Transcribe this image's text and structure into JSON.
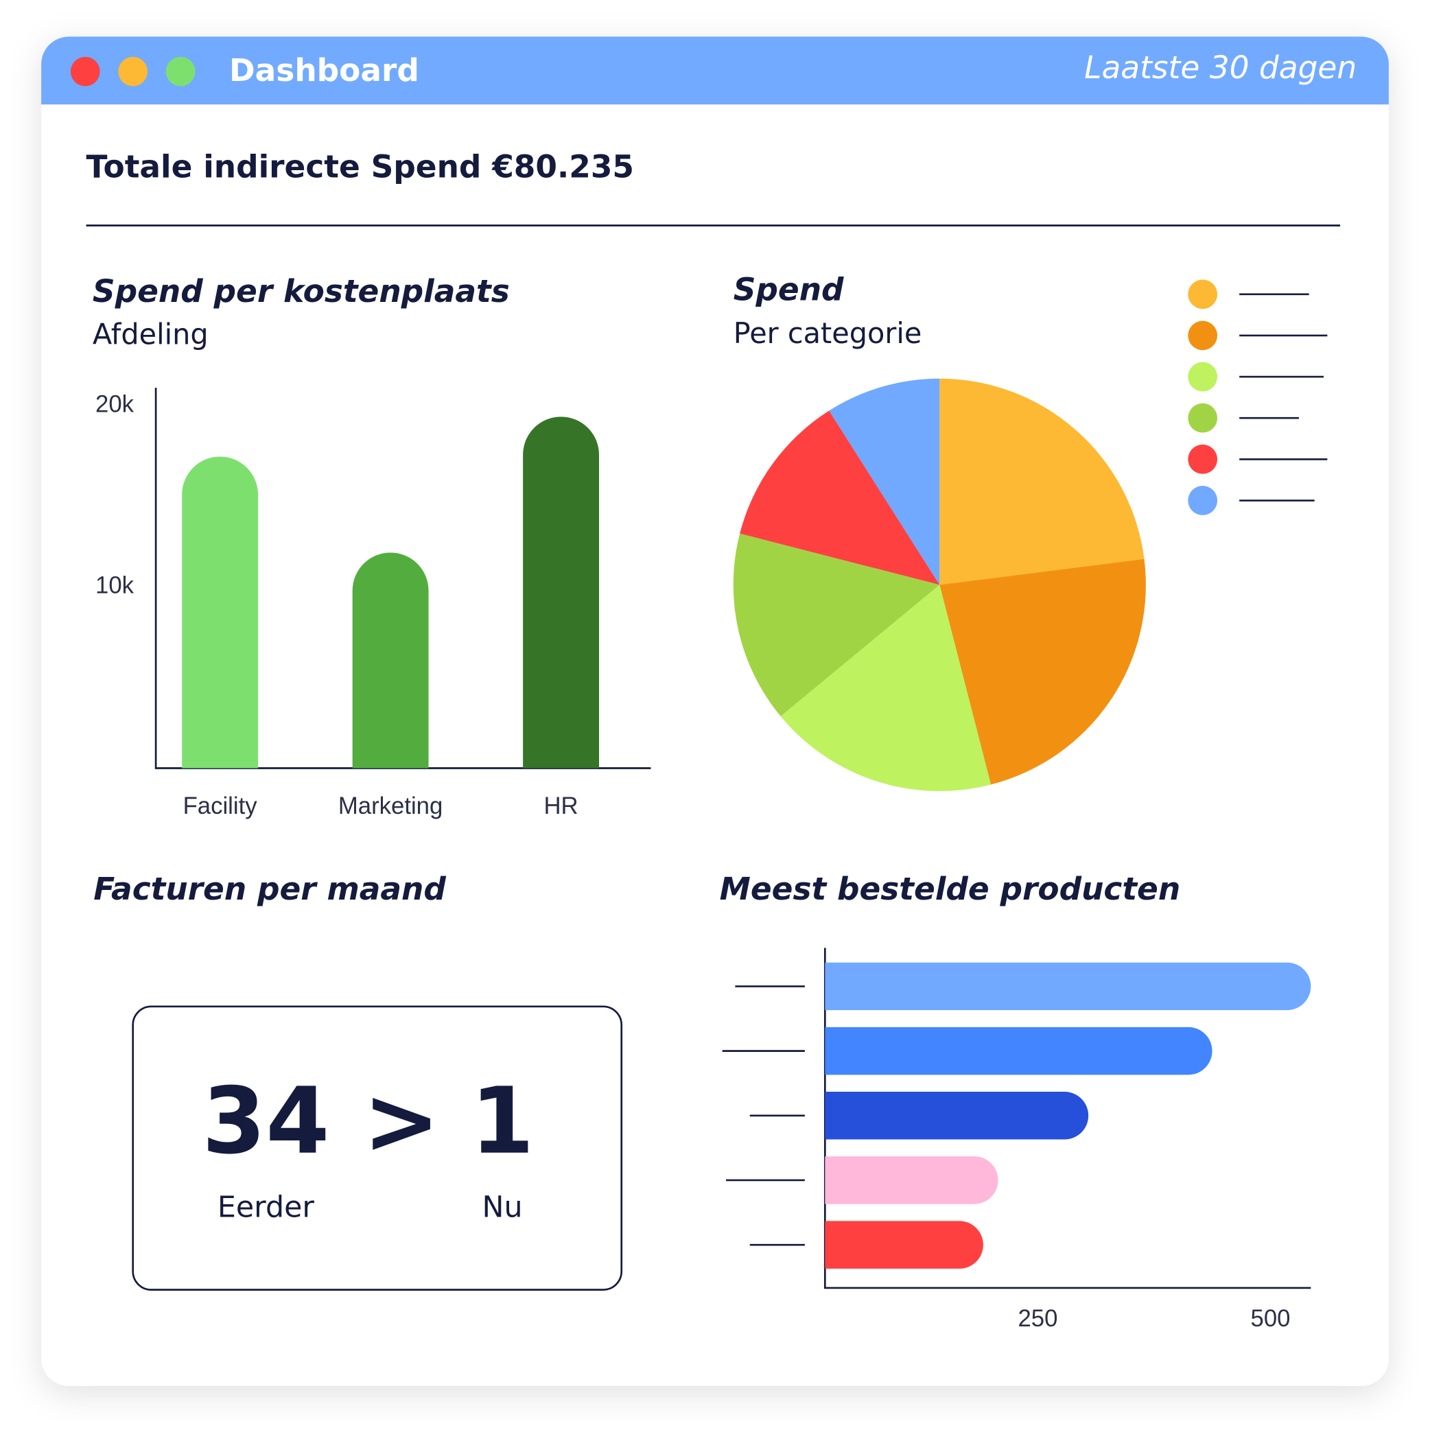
{
  "window": {
    "title": "Dashboard",
    "period": "Laatste 30 dagen"
  },
  "summary": "Totale indirecte Spend €80.235",
  "chart_data": [
    {
      "type": "bar",
      "title": "Spend per kostenplaats",
      "subtitle": "Afdeling",
      "categories": [
        "Facility",
        "Marketing",
        "HR"
      ],
      "values": [
        17200,
        11900,
        19400
      ],
      "colors": [
        "#7de06e",
        "#52ad3e",
        "#367428"
      ],
      "ylim": [
        0,
        21000
      ],
      "yticks": [
        {
          "value": 10000,
          "label": "10k"
        },
        {
          "value": 20000,
          "label": "20k"
        }
      ]
    },
    {
      "type": "pie",
      "title": "Spend",
      "subtitle": "Per categorie",
      "categories": [
        null,
        null,
        null,
        null,
        null,
        null
      ],
      "values": [
        23,
        23,
        18,
        15,
        12,
        9
      ],
      "colors": [
        "#fdb933",
        "#f29111",
        "#bef25e",
        "#a1d445",
        "#ff4040",
        "#70a9ff"
      ],
      "legend": "top-right"
    },
    {
      "type": "hbar",
      "title": "Meest bestelde producten",
      "categories": [
        null,
        null,
        null,
        null,
        null
      ],
      "values": [
        522,
        416,
        283,
        186,
        170
      ],
      "colors": [
        "#70a9ff",
        "#4285ff",
        "#2650d9",
        "#ffb8d9",
        "#ff4040"
      ],
      "xlim": [
        0,
        522
      ],
      "xticks": [
        250,
        500
      ]
    }
  ],
  "invoices": {
    "title": "Facturen per maand",
    "before": 34,
    "separator": ">",
    "after": 1,
    "before_label": "Eerder",
    "after_label": "Nu"
  }
}
